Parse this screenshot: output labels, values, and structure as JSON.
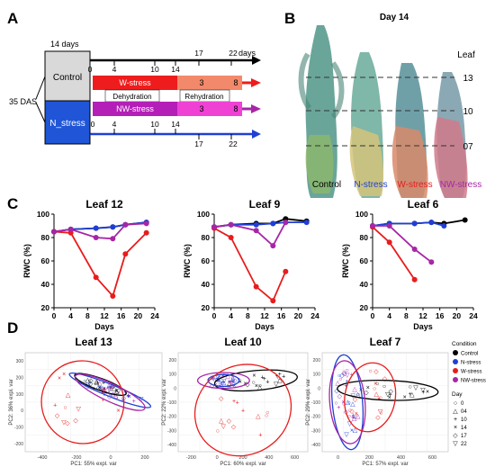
{
  "panel_labels": {
    "a": "A",
    "b": "B",
    "c": "C",
    "d": "D"
  },
  "colors": {
    "control": "#000000",
    "n_stress": "#1f3fd4",
    "w_stress": "#e81c1c",
    "nw_stress": "#a626a6"
  },
  "panelA": {
    "days_14": "14 days",
    "days_label": "days",
    "das": "35 DAS",
    "control": "Control",
    "n_stress": "N_stress",
    "w_stress": "W-stress",
    "nw_stress": "NW-stress",
    "dehydration": "Dehydration",
    "rehydration": "Rehydration",
    "top_ticks": [
      "0",
      "4",
      "10",
      "14"
    ],
    "top_ticks2": [
      "17",
      "22"
    ],
    "bottom_ticks": [
      "0",
      "4",
      "10",
      "14"
    ],
    "bottom_ticks2": [
      "17",
      "22"
    ],
    "w_nums": [
      "3",
      "8"
    ],
    "nw_nums": [
      "3",
      "8"
    ]
  },
  "panelB": {
    "title": "Day 14",
    "leaf_header": "Leaf",
    "leaf_labels": [
      "13",
      "10",
      "07"
    ],
    "conditions": [
      "Control",
      "N-stress",
      "W-stress",
      "NW-stress"
    ]
  },
  "chart_data": [
    {
      "type": "line",
      "title": "Leaf 12",
      "xlabel": "Days",
      "ylabel": "RWC (%)",
      "xlim": [
        0,
        24
      ],
      "ylim": [
        20,
        100
      ],
      "xticks": [
        "0",
        "4",
        "8",
        "12",
        "16",
        "20",
        "24"
      ],
      "yticks": [
        "20",
        "40",
        "60",
        "80",
        "100"
      ],
      "series": [
        {
          "name": "Control",
          "x": [
            0,
            4,
            10,
            14,
            17,
            22
          ],
          "y": [
            85,
            87,
            88,
            89,
            91,
            93
          ]
        },
        {
          "name": "N-stress",
          "x": [
            0,
            4,
            10,
            14,
            17,
            22
          ],
          "y": [
            85,
            87,
            88,
            89,
            91,
            93
          ]
        },
        {
          "name": "W-stress",
          "x": [
            0,
            4,
            10,
            14,
            17,
            22
          ],
          "y": [
            85,
            84,
            46,
            30,
            66,
            84
          ]
        },
        {
          "name": "NW-stress",
          "x": [
            0,
            4,
            10,
            14,
            17,
            22
          ],
          "y": [
            85,
            87,
            80,
            79,
            91,
            92
          ]
        }
      ]
    },
    {
      "type": "line",
      "title": "Leaf 9",
      "xlabel": "Days",
      "ylabel": "RWC (%)",
      "xlim": [
        0,
        24
      ],
      "ylim": [
        20,
        100
      ],
      "xticks": [
        "0",
        "4",
        "8",
        "12",
        "16",
        "20",
        "24"
      ],
      "yticks": [
        "20",
        "40",
        "60",
        "80",
        "100"
      ],
      "series": [
        {
          "name": "Control",
          "x": [
            0,
            4,
            10,
            14,
            17,
            22
          ],
          "y": [
            89,
            91,
            92,
            92,
            96,
            94
          ]
        },
        {
          "name": "N-stress",
          "x": [
            0,
            4,
            10,
            14,
            17,
            22
          ],
          "y": [
            89,
            91,
            91,
            92,
            93,
            93
          ]
        },
        {
          "name": "W-stress",
          "x": [
            0,
            4,
            10,
            14,
            17
          ],
          "y": [
            88,
            80,
            38,
            26,
            51
          ]
        },
        {
          "name": "NW-stress",
          "x": [
            0,
            4,
            10,
            14,
            17
          ],
          "y": [
            89,
            91,
            86,
            73,
            93
          ]
        }
      ]
    },
    {
      "type": "line",
      "title": "Leaf 6",
      "xlabel": "Days",
      "ylabel": "RWC (%)",
      "xlim": [
        0,
        24
      ],
      "ylim": [
        20,
        100
      ],
      "xticks": [
        "0",
        "4",
        "8",
        "12",
        "16",
        "20",
        "24"
      ],
      "yticks": [
        "20",
        "40",
        "60",
        "80",
        "100"
      ],
      "series": [
        {
          "name": "Control",
          "x": [
            0,
            4,
            10,
            14,
            17,
            22
          ],
          "y": [
            90,
            92,
            92,
            93,
            92,
            95
          ]
        },
        {
          "name": "N-stress",
          "x": [
            0,
            4,
            10,
            14,
            17
          ],
          "y": [
            90,
            92,
            92,
            93,
            90
          ]
        },
        {
          "name": "W-stress",
          "x": [
            0,
            4,
            10
          ],
          "y": [
            89,
            76,
            44
          ]
        },
        {
          "name": "NW-stress",
          "x": [
            0,
            4,
            10,
            14
          ],
          "y": [
            90,
            90,
            70,
            59
          ]
        }
      ]
    },
    {
      "type": "scatter",
      "title": "Leaf 13",
      "xlabel": "PC1: 55% expl. var",
      "ylabel": "PC2: 36% expl. var",
      "xticks": [
        "-400",
        "-200",
        "0",
        "200"
      ],
      "yticks": [
        "-200",
        "-100",
        "0",
        "100",
        "200",
        "300"
      ]
    },
    {
      "type": "scatter",
      "title": "Leaf 10",
      "xlabel": "PC1: 60% expl. var",
      "ylabel": "PC2: 22% expl. var",
      "xticks": [
        "-200",
        "0",
        "200",
        "400",
        "600"
      ],
      "yticks": [
        "-400",
        "-300",
        "-200",
        "-100",
        "0",
        "100",
        "200"
      ]
    },
    {
      "type": "scatter",
      "title": "Leaf 7",
      "xlabel": "PC1: 57% expl. var",
      "ylabel": "PC2: 29% expl. var",
      "xticks": [
        "0",
        "200",
        "400",
        "600"
      ],
      "yticks": [
        "-400",
        "-300",
        "-200",
        "-100",
        "0",
        "100",
        "200"
      ]
    }
  ],
  "legend": {
    "condition_title": "Condition",
    "conditions": [
      "Control",
      "N-stress",
      "W-stress",
      "NW-stress"
    ],
    "day_title": "Day",
    "days": [
      "0",
      "04",
      "10",
      "14",
      "17",
      "22"
    ],
    "day_symbols": [
      "○",
      "△",
      "+",
      "×",
      "◇",
      "▽"
    ]
  }
}
